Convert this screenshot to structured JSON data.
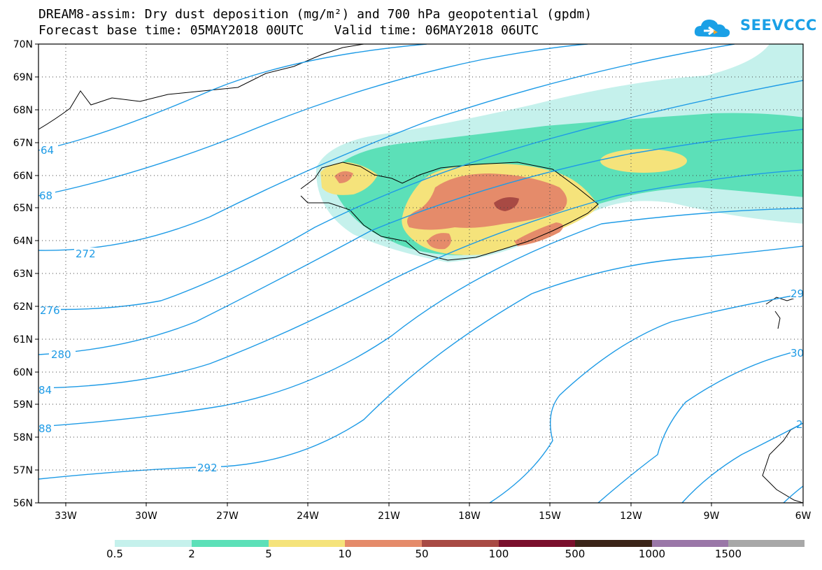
{
  "header": {
    "line1": "DREAM8-assim: Dry dust deposition (mg/m²) and 700 hPa geopotential (gpdm)",
    "line2": "Forecast base time: 05MAY2018 00UTC    Valid time: 06MAY2018 06UTC"
  },
  "logo": {
    "text": "SEEVCCC",
    "color": "#1aa0e6"
  },
  "axes": {
    "lat_labels": [
      "70N",
      "69N",
      "68N",
      "67N",
      "66N",
      "65N",
      "64N",
      "63N",
      "62N",
      "61N",
      "60N",
      "59N",
      "58N",
      "57N",
      "56N"
    ],
    "lon_labels": [
      "33W",
      "30W",
      "27W",
      "24W",
      "21W",
      "18W",
      "15W",
      "12W",
      "9W",
      "6W"
    ],
    "lat_range": [
      56,
      70
    ],
    "lon_range": [
      -34.5,
      -6
    ],
    "grid": "dotted"
  },
  "contours": {
    "color": "#1e9be6",
    "labels": [
      "64",
      "68",
      "272",
      "276",
      "280",
      "84",
      "88",
      "292",
      "29",
      "30",
      "2"
    ]
  },
  "colorbar": {
    "colors": [
      "#c5f1ec",
      "#5ce0b8",
      "#f5e37b",
      "#e58b6a",
      "#a84a44",
      "#7a0f2c",
      "#3b2418",
      "#9a77a8",
      "#a8a8a8"
    ],
    "labels": [
      "0.5",
      "2",
      "5",
      "10",
      "50",
      "100",
      "500",
      "1000",
      "1500"
    ]
  }
}
